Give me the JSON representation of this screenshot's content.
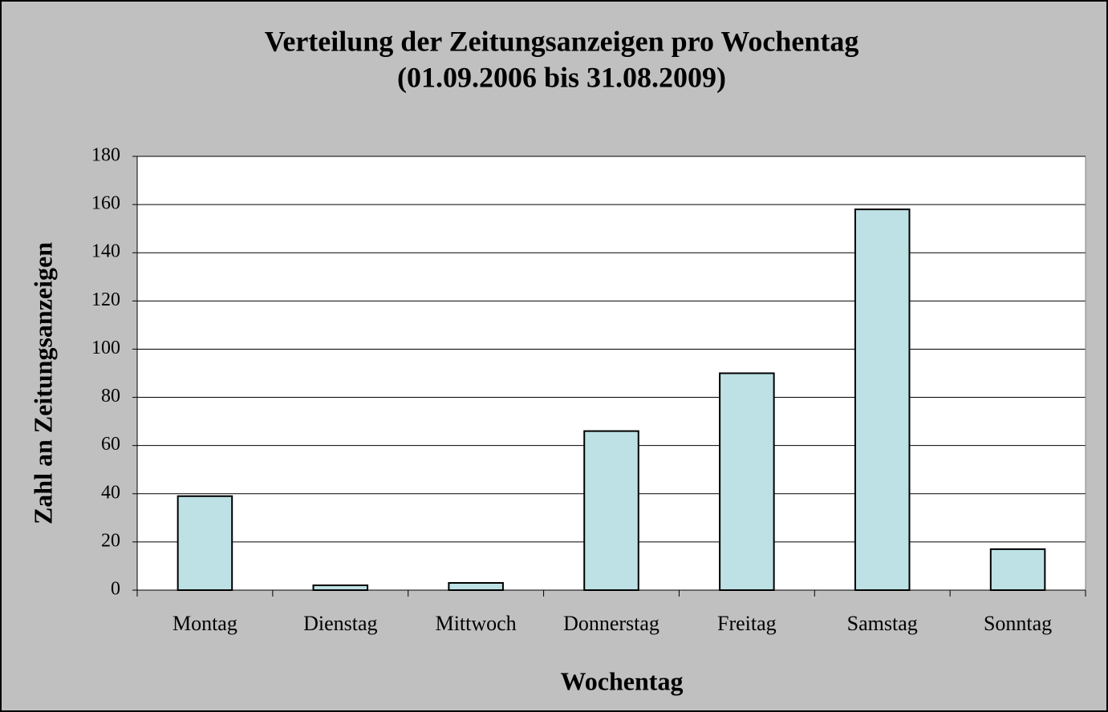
{
  "chart_data": {
    "type": "bar",
    "title": "Verteilung der Zeitungsanzeigen pro Wochentag",
    "subtitle": "(01.09.2006 bis 31.08.2009)",
    "x_label": "Wochentag",
    "y_label": "Zahl an Zeitungsanzeigen",
    "categories": [
      "Montag",
      "Dienstag",
      "Mittwoch",
      "Donnerstag",
      "Freitag",
      "Samstag",
      "Sonntag"
    ],
    "values": [
      39,
      2,
      3,
      66,
      90,
      158,
      17
    ],
    "color": "#bde1e4",
    "ylim": [
      0,
      180
    ],
    "yticks": [
      0,
      20,
      40,
      60,
      80,
      100,
      120,
      140,
      160,
      180
    ],
    "grid": true
  }
}
